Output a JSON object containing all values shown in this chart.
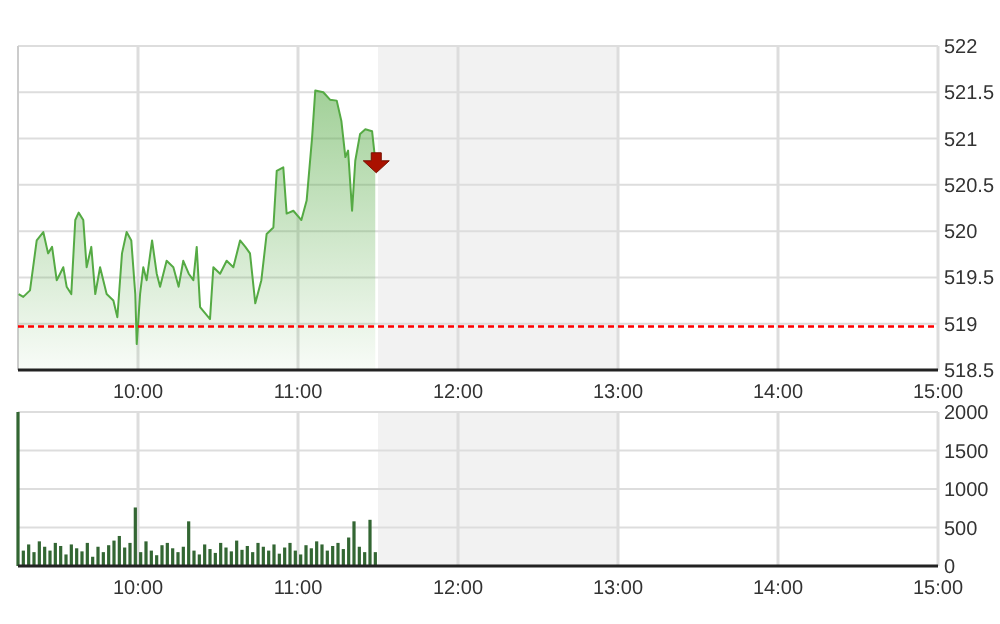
{
  "chart_data": [
    {
      "type": "area",
      "xlim": [
        9.25,
        15
      ],
      "ylim": [
        518.5,
        522
      ],
      "xticks": [
        {
          "value": 10,
          "label": "10:00"
        },
        {
          "value": 11,
          "label": "11:00"
        },
        {
          "value": 12,
          "label": "12:00"
        },
        {
          "value": 13,
          "label": "13:00"
        },
        {
          "value": 14,
          "label": "14:00"
        },
        {
          "value": 15,
          "label": "15:00"
        }
      ],
      "yticks": [
        518.5,
        519,
        519.5,
        520,
        520.5,
        521,
        521.5,
        522
      ],
      "grid": true,
      "x": [
        9.254,
        9.283,
        9.325,
        9.367,
        9.408,
        9.438,
        9.463,
        9.492,
        9.513,
        9.533,
        9.554,
        9.583,
        9.608,
        9.629,
        9.658,
        9.679,
        9.708,
        9.733,
        9.763,
        9.804,
        9.846,
        9.871,
        9.9,
        9.929,
        9.958,
        9.983,
        9.992,
        10.013,
        10.033,
        10.054,
        10.088,
        10.117,
        10.138,
        10.179,
        10.221,
        10.254,
        10.283,
        10.317,
        10.346,
        10.367,
        10.388,
        10.45,
        10.471,
        10.513,
        10.554,
        10.596,
        10.638,
        10.671,
        10.7,
        10.733,
        10.771,
        10.804,
        10.846,
        10.867,
        10.908,
        10.929,
        10.971,
        11.021,
        11.054,
        11.088,
        11.108,
        11.158,
        11.2,
        11.242,
        11.271,
        11.296,
        11.313,
        11.338,
        11.358,
        11.388,
        11.421,
        11.463,
        11.483
      ],
      "series": [
        {
          "color": "#55aa44",
          "values": [
            519.32,
            519.29,
            519.36,
            519.9,
            519.99,
            519.76,
            519.83,
            519.47,
            519.54,
            519.61,
            519.4,
            519.32,
            520.12,
            520.2,
            520.12,
            519.61,
            519.83,
            519.32,
            519.61,
            519.32,
            519.25,
            519.07,
            519.76,
            519.99,
            519.9,
            519.32,
            518.78,
            519.32,
            519.61,
            519.47,
            519.9,
            519.54,
            519.4,
            519.68,
            519.61,
            519.4,
            519.68,
            519.54,
            519.47,
            519.83,
            519.18,
            519.05,
            519.61,
            519.54,
            519.68,
            519.61,
            519.9,
            519.83,
            519.76,
            519.22,
            519.47,
            519.97,
            520.04,
            520.65,
            520.69,
            520.19,
            520.22,
            520.12,
            520.33,
            521.01,
            521.52,
            521.5,
            521.42,
            521.41,
            521.19,
            520.8,
            520.87,
            520.22,
            520.76,
            521.05,
            521.1,
            521.08,
            520.76
          ]
        }
      ],
      "ref_lines": [
        {
          "axis": "y",
          "value": 518.97,
          "color": "#ff0000",
          "line_style": "dashed"
        }
      ],
      "bands": [
        {
          "axis": "x",
          "from": 11.5,
          "to": 13,
          "color": "#f2f2f2"
        }
      ]
    },
    {
      "type": "bar",
      "xlim": [
        9.25,
        15
      ],
      "ylim": [
        0,
        2000
      ],
      "xticks": [
        {
          "value": 10,
          "label": "10:00"
        },
        {
          "value": 11,
          "label": "11:00"
        },
        {
          "value": 12,
          "label": "12:00"
        },
        {
          "value": 13,
          "label": "13:00"
        },
        {
          "value": 14,
          "label": "14:00"
        },
        {
          "value": 15,
          "label": "15:00"
        }
      ],
      "yticks": [
        0,
        500,
        1000,
        1500,
        2000
      ],
      "grid": true,
      "x": [
        9.25,
        9.2833,
        9.3167,
        9.35,
        9.3833,
        9.4167,
        9.45,
        9.4833,
        9.5167,
        9.55,
        9.5833,
        9.6167,
        9.65,
        9.6833,
        9.7167,
        9.75,
        9.7833,
        9.8167,
        9.85,
        9.8833,
        9.9167,
        9.95,
        9.9833,
        10.0167,
        10.05,
        10.0833,
        10.1167,
        10.15,
        10.1833,
        10.2167,
        10.25,
        10.2833,
        10.3167,
        10.35,
        10.3833,
        10.4167,
        10.45,
        10.4833,
        10.5167,
        10.55,
        10.5833,
        10.6167,
        10.65,
        10.6833,
        10.7167,
        10.75,
        10.7833,
        10.8167,
        10.85,
        10.8833,
        10.9167,
        10.95,
        10.9833,
        11.0167,
        11.05,
        11.0833,
        11.1167,
        11.15,
        11.1833,
        11.2167,
        11.25,
        11.2833,
        11.3167,
        11.35,
        11.3833,
        11.4167,
        11.45,
        11.4833
      ],
      "series": [
        {
          "color": "#336633",
          "values": [
            2000,
            200,
            280,
            180,
            320,
            250,
            200,
            300,
            260,
            150,
            280,
            230,
            190,
            300,
            120,
            250,
            180,
            270,
            330,
            390,
            240,
            300,
            760,
            180,
            320,
            200,
            140,
            270,
            300,
            230,
            180,
            250,
            580,
            200,
            150,
            280,
            220,
            170,
            300,
            240,
            190,
            330,
            210,
            260,
            180,
            300,
            250,
            200,
            280,
            160,
            240,
            300,
            200,
            150,
            270,
            230,
            320,
            280,
            200,
            260,
            300,
            220,
            370,
            580,
            250,
            180,
            600,
            180
          ]
        }
      ],
      "bands": [
        {
          "axis": "x",
          "from": 11.5,
          "to": 13,
          "color": "#f2f2f2"
        }
      ]
    }
  ]
}
